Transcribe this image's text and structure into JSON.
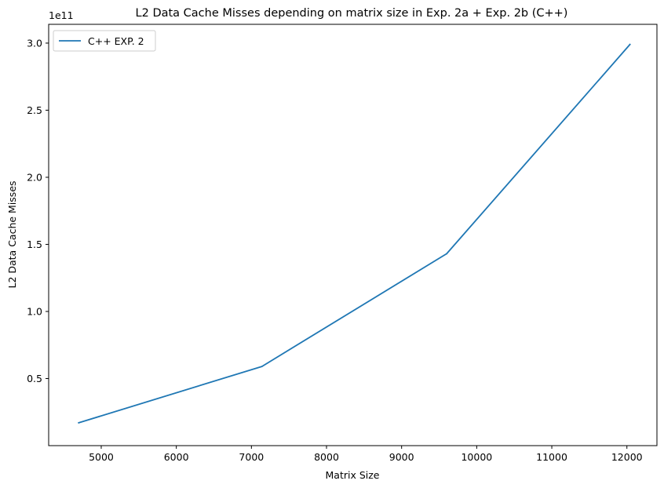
{
  "chart_data": {
    "type": "line",
    "title": "L2 Data Cache Misses depending on matrix size in Exp. 2a + Exp. 2b (C++)",
    "xlabel": "Matrix Size",
    "ylabel": "L2 Data Cache Misses",
    "y_offset_label": "1e11",
    "xlim": [
      4300,
      12400
    ],
    "ylim": [
      0.0,
      3.14
    ],
    "x_ticks": [
      5000,
      6000,
      7000,
      8000,
      9000,
      10000,
      11000,
      12000
    ],
    "y_ticks": [
      0.5,
      1.0,
      1.5,
      2.0,
      2.5,
      3.0
    ],
    "y_tick_labels": [
      "0.5",
      "1.0",
      "1.5",
      "2.0",
      "2.5",
      "3.0"
    ],
    "grid": false,
    "legend_position": "top-left",
    "series": [
      {
        "name": "C++ EXP. 2",
        "color": "#1f77b4",
        "x": [
          4700,
          7140,
          9600,
          12040
        ],
        "y": [
          0.17,
          0.59,
          1.43,
          2.99
        ]
      }
    ]
  }
}
